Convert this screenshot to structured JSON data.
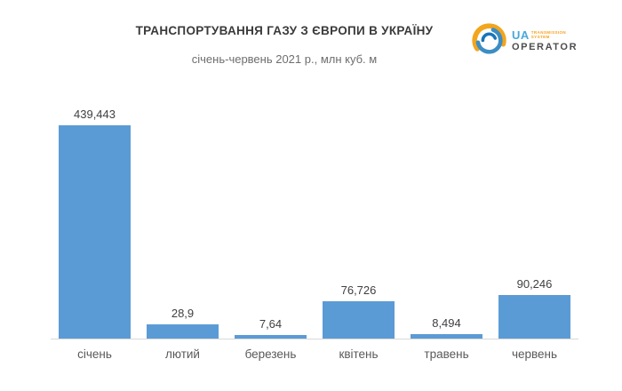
{
  "logo": {
    "ua": "UA",
    "system_line1": "TRANSMISSION",
    "system_line2": "SYSTEM",
    "operator": "OPERATOR",
    "blue": "#4aa8d8",
    "orange": "#f6a01a",
    "dark_gray": "#4d4d4f",
    "icon_yellow": "#f2a51d",
    "icon_blue_mid": "#3c8dc5",
    "icon_blue_dark": "#1b75b8"
  },
  "chart_data": {
    "type": "bar",
    "title": "ТРАНСПОРТУВАННЯ ГАЗУ З ЄВРОПИ В УКРАЇНУ",
    "subtitle": "січень-червень 2021 р., млн куб. м",
    "unit": "млн куб. м",
    "categories": [
      "січень",
      "лютий",
      "березень",
      "квітень",
      "травень",
      "червень"
    ],
    "values": [
      439.443,
      28.9,
      7.64,
      76.726,
      8.494,
      90.246
    ],
    "value_labels": [
      "439,443",
      "28,9",
      "7,64",
      "76,726",
      "8,494",
      "90,246"
    ],
    "ylim": [
      0,
      439.443
    ],
    "grid": false,
    "legend": false,
    "bar_color": "#5b9bd5",
    "axis_line_color": "#d9d9d9",
    "value_label_color": "#404040",
    "category_label_color": "#595959"
  }
}
